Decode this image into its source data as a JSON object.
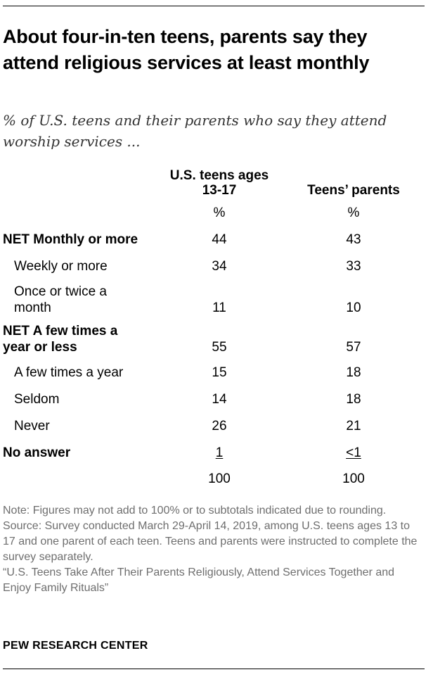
{
  "chart_data": {
    "type": "table",
    "title": "About four-in-ten teens, parents say they attend religious services at least monthly",
    "subtitle": "% of U.S. teens and their parents who say they attend worship services ...",
    "columns": [
      {
        "line1": "U.S. teens ages",
        "line2": "13-17",
        "unit": "%"
      },
      {
        "line1": "Teens’ parents",
        "unit": "%"
      }
    ],
    "rows": [
      {
        "label": "NET Monthly or more",
        "teens": "44",
        "parents": "43"
      },
      {
        "label": "Weekly or more",
        "teens": "34",
        "parents": "33"
      },
      {
        "label_line1": "Once or twice a",
        "label_line2": "month",
        "teens": "11",
        "parents": "10"
      },
      {
        "label_line1": "NET A few times a",
        "label_line2": "year or less",
        "teens": "55",
        "parents": "57"
      },
      {
        "label": "A few times a year",
        "teens": "15",
        "parents": "18"
      },
      {
        "label": "Seldom",
        "teens": "14",
        "parents": "18"
      },
      {
        "label": "Never",
        "teens": "26",
        "parents": "21"
      },
      {
        "label": "No answer",
        "teens": "1",
        "parents": "<1"
      }
    ],
    "totals": {
      "teens": "100",
      "parents": "100"
    }
  },
  "notes": {
    "note": "Note: Figures may not add to 100% or to subtotals indicated due to rounding.",
    "source": "Source: Survey conducted March 29-April 14, 2019, among U.S. teens ages 13 to 17 and one parent of each teen. Teens and parents were instructed to complete the survey separately.",
    "report": "“U.S. Teens Take After Their Parents Religiously, Attend Services Together and Enjoy Family Rituals”"
  },
  "org": "PEW RESEARCH CENTER"
}
